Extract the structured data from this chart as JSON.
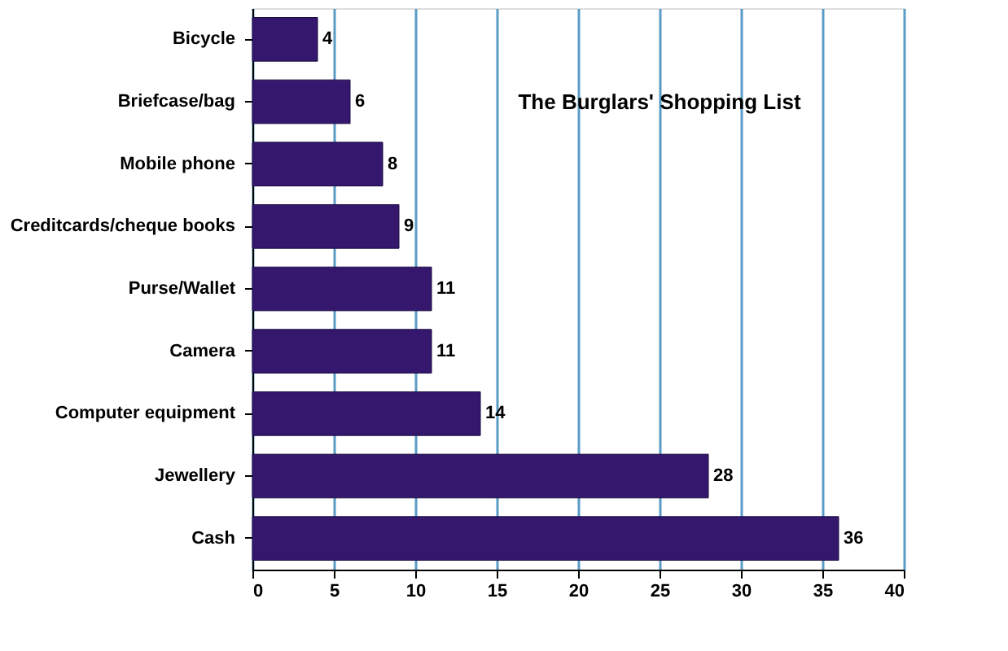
{
  "chart_data": {
    "type": "bar",
    "orientation": "horizontal",
    "title": "The Burglars' Shopping List",
    "categories": [
      "Bicycle",
      "Briefcase/bag",
      "Mobile phone",
      "Creditcards/cheque books",
      "Purse/Wallet",
      "Camera",
      "Computer equipment",
      "Jewellery",
      "Cash"
    ],
    "values": [
      4,
      6,
      8,
      9,
      11,
      11,
      14,
      28,
      36
    ],
    "color": "#35186e",
    "xlim": [
      0,
      40
    ],
    "xticks": [
      0,
      5,
      10,
      15,
      20,
      25,
      30,
      35,
      40
    ],
    "grid": "x",
    "data_labels": true
  }
}
